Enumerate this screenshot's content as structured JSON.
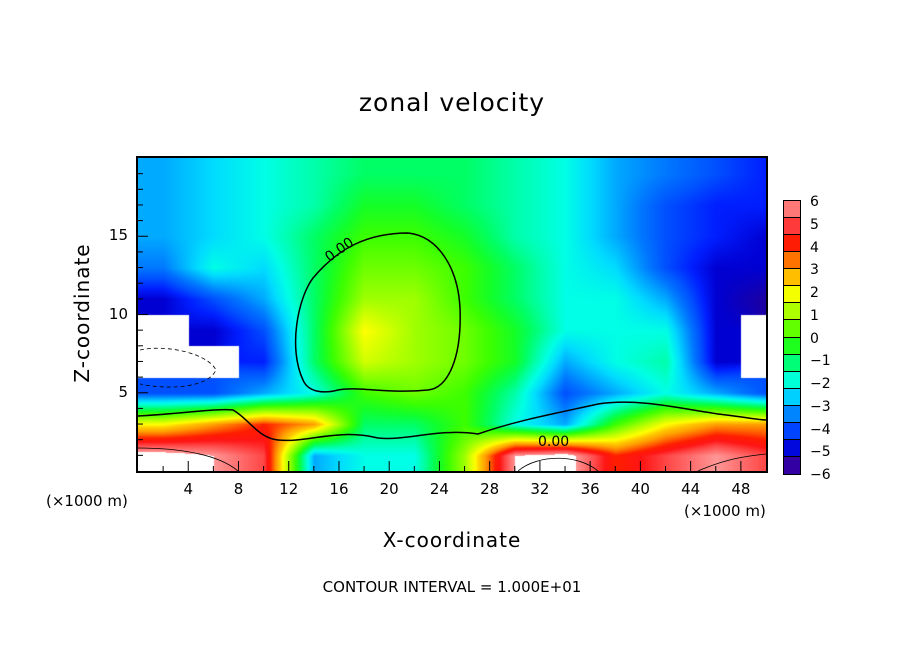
{
  "chart_data": {
    "type": "heatmap",
    "title": "zonal velocity",
    "xlabel": "X-coordinate",
    "ylabel": "Z-coordinate",
    "x_unit_left": "(×1000 m)",
    "x_unit_right": "(×1000 m)",
    "xlim": [
      0,
      50
    ],
    "ylim": [
      0,
      20
    ],
    "xticks": [
      4,
      8,
      12,
      16,
      20,
      24,
      28,
      32,
      36,
      40,
      44,
      48
    ],
    "yticks": [
      5,
      10,
      15
    ],
    "colorbar": {
      "min": -6,
      "max": 6,
      "ticks": [
        6,
        5,
        4,
        3,
        2,
        1,
        0,
        -1,
        -2,
        -3,
        -4,
        -5,
        -6
      ]
    },
    "grid_x": [
      2,
      6,
      10,
      14,
      18,
      22,
      26,
      30,
      34,
      38,
      42,
      46,
      50
    ],
    "grid_z": [
      19,
      17,
      15,
      13,
      11,
      9,
      7,
      5,
      3,
      1
    ],
    "values": [
      [
        -3,
        -2.5,
        -2,
        -1.5,
        -1,
        -1,
        -1,
        -1.5,
        -2,
        -3,
        -3.5,
        -4,
        -4.5
      ],
      [
        -3,
        -2.5,
        -2,
        -1.5,
        -0.5,
        -0.5,
        -1,
        -1.5,
        -2,
        -3,
        -4,
        -4.5,
        -4.5
      ],
      [
        -3,
        -2.5,
        -2,
        -1,
        0,
        0,
        -0.5,
        -1.5,
        -2,
        -3,
        -4,
        -4.5,
        -5
      ],
      [
        -3.5,
        -2,
        -2.5,
        -1,
        0.5,
        0.5,
        0,
        -1,
        -2,
        -2.5,
        -4,
        -5,
        -5
      ],
      [
        -5,
        -4,
        -3,
        -1,
        1,
        1,
        0,
        -1,
        -2,
        -2,
        -3,
        -5,
        -5.5
      ],
      [
        null,
        -5,
        -4,
        -1,
        2,
        1,
        0.5,
        -0.5,
        -2,
        -2,
        -2,
        -5,
        null
      ],
      [
        null,
        null,
        -4.5,
        -1,
        1.5,
        1,
        0.5,
        -0.5,
        -3,
        -2,
        -1.5,
        -5,
        null
      ],
      [
        -4,
        -4,
        -3,
        -2,
        0,
        0.5,
        0,
        -1.5,
        -4,
        -3,
        -2,
        -3,
        -4
      ],
      [
        2,
        3,
        4,
        3,
        -1,
        -1,
        0,
        -2,
        -3,
        0,
        2,
        3,
        3
      ],
      [
        6.5,
        6,
        5,
        -3,
        -2,
        -2,
        1,
        6,
        6.5,
        4,
        5,
        6,
        5
      ]
    ],
    "contour_labels": [
      "0.00",
      "0.00"
    ],
    "contour_interval": "CONTOUR INTERVAL = 1.000E+01"
  }
}
